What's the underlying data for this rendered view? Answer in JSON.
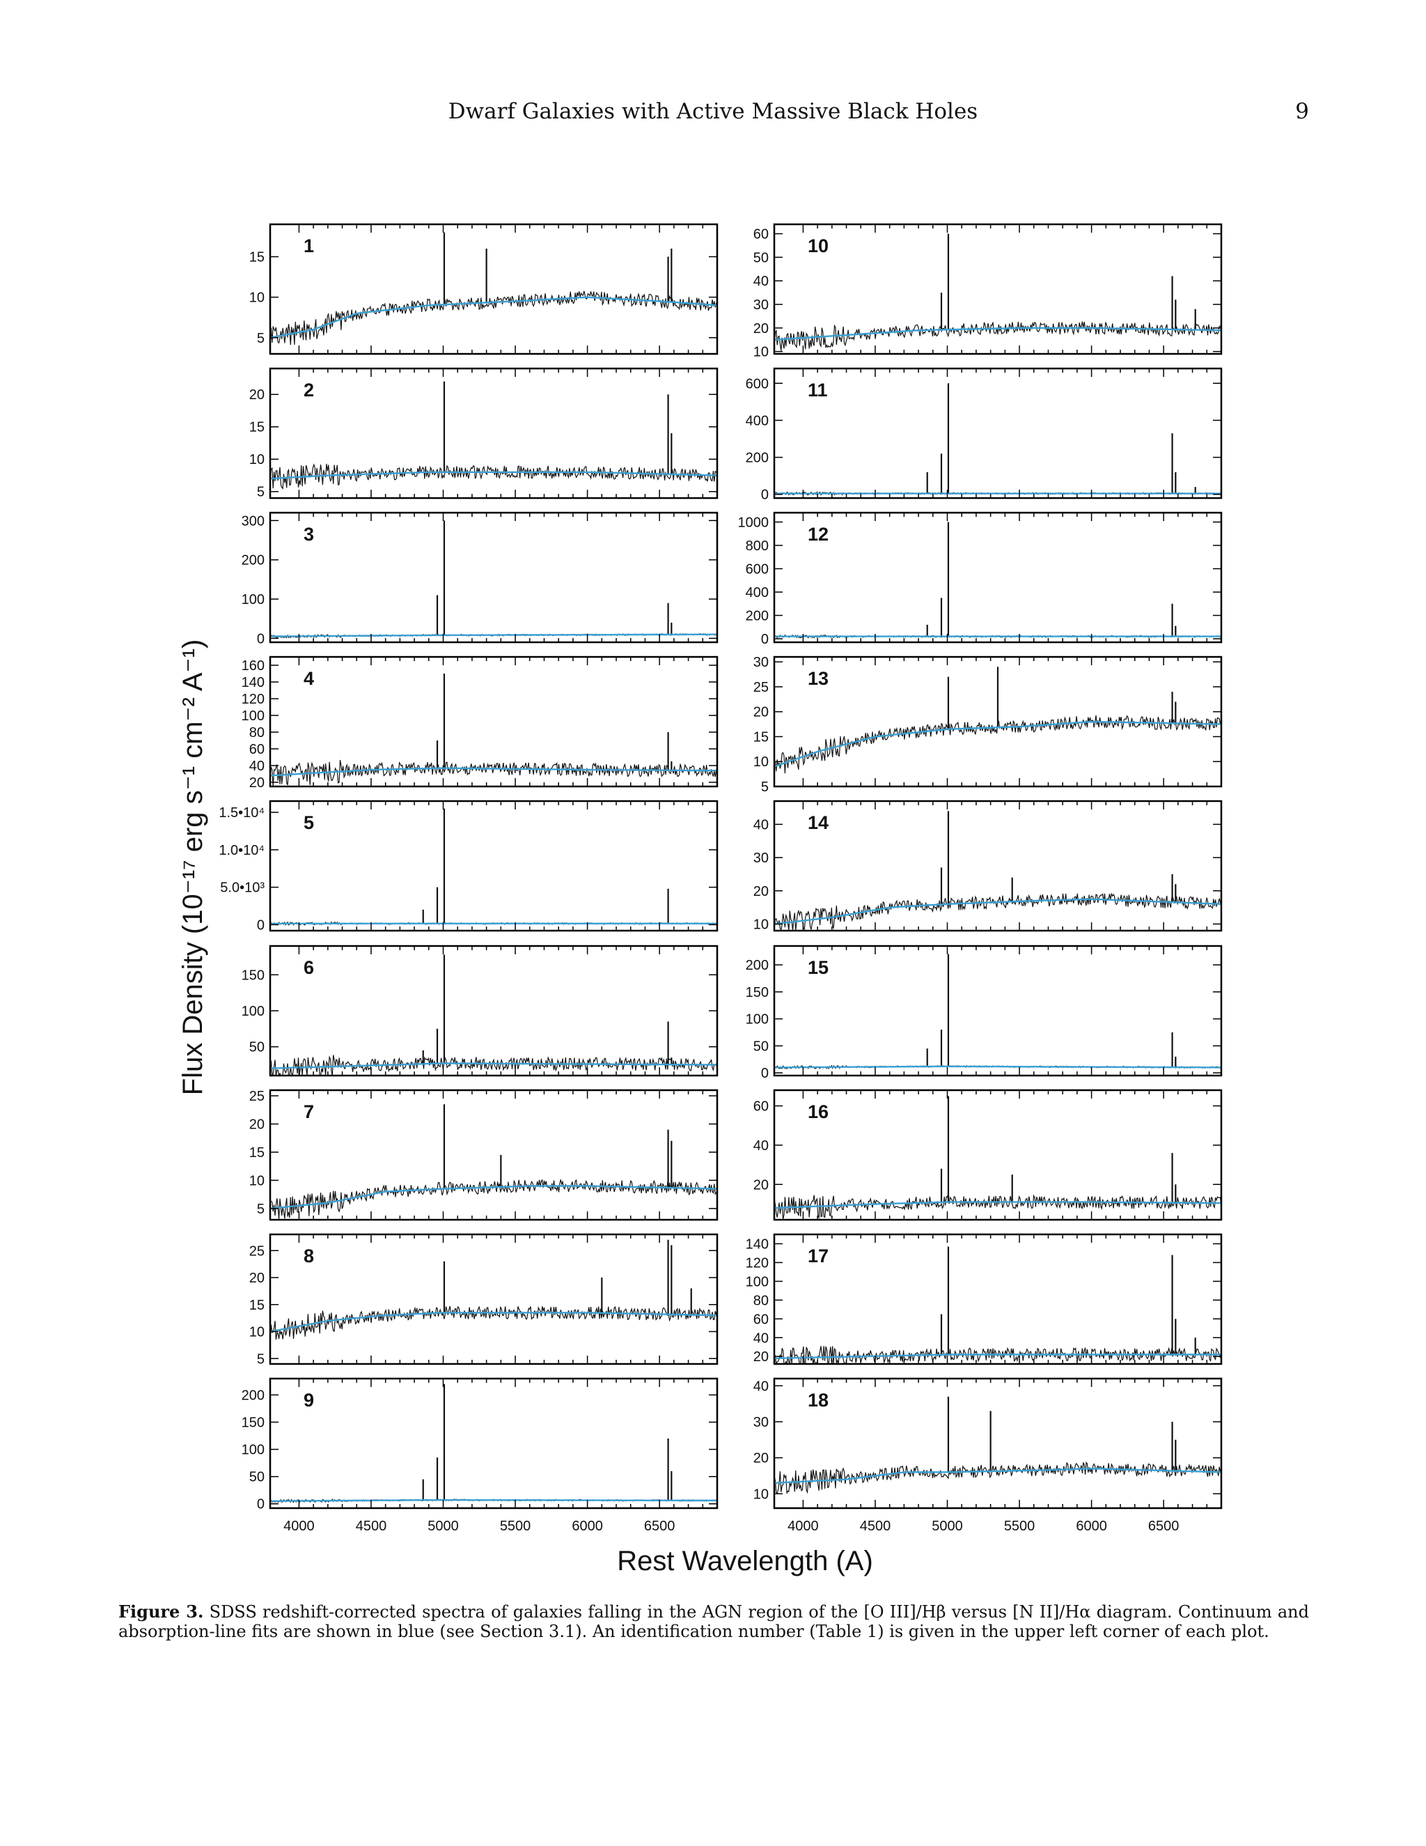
{
  "header": {
    "running_title": "Dwarf Galaxies with Active Massive Black Holes",
    "page_number": "9"
  },
  "figure": {
    "y_axis_label": "Flux Density (10⁻¹⁷ erg s⁻¹ cm⁻² A⁻¹)",
    "x_axis_label": "Rest Wavelength (A)",
    "colors": {
      "spectrum": "#111111",
      "fit": "#3aa0d4",
      "frame": "#000000"
    }
  },
  "caption": {
    "label": "Figure 3.",
    "text": "SDSS redshift-corrected spectra of galaxies falling in the AGN region of the [O III]/Hβ versus [N II]/Hα diagram. Continuum and absorption-line fits are shown in blue (see Section 3.1). An identification number (Table 1) is given in the upper left corner of each plot."
  },
  "chart_data": [
    {
      "type": "line",
      "id": "1",
      "xlim": [
        3800,
        6900
      ],
      "ylim": [
        3,
        19
      ],
      "ytick_labels": [
        "5",
        "10",
        "15"
      ],
      "yticks": [
        5,
        10,
        15
      ],
      "continuum": [
        [
          3800,
          5
        ],
        [
          4100,
          6
        ],
        [
          4400,
          8
        ],
        [
          4900,
          9
        ],
        [
          5500,
          9.5
        ],
        [
          6000,
          10
        ],
        [
          6500,
          9.5
        ],
        [
          6900,
          9
        ]
      ],
      "lines": [
        [
          5007,
          18
        ],
        [
          5300,
          16
        ],
        [
          6560,
          15
        ],
        [
          6583,
          16
        ]
      ]
    },
    {
      "type": "line",
      "id": "2",
      "xlim": [
        3800,
        6900
      ],
      "ylim": [
        4,
        24
      ],
      "ytick_labels": [
        "5",
        "10",
        "15",
        "20"
      ],
      "yticks": [
        5,
        10,
        15,
        20
      ],
      "continuum": [
        [
          3800,
          7
        ],
        [
          4200,
          7.5
        ],
        [
          4900,
          8
        ],
        [
          5500,
          8
        ],
        [
          6000,
          8
        ],
        [
          6900,
          7.5
        ]
      ],
      "lines": [
        [
          5007,
          22
        ],
        [
          6560,
          20
        ],
        [
          6583,
          14
        ]
      ]
    },
    {
      "type": "line",
      "id": "3",
      "xlim": [
        3800,
        6900
      ],
      "ylim": [
        -10,
        320
      ],
      "ytick_labels": [
        "0",
        "100",
        "200",
        "300"
      ],
      "yticks": [
        0,
        100,
        200,
        300
      ],
      "continuum": [
        [
          3800,
          5
        ],
        [
          5000,
          8
        ],
        [
          6900,
          10
        ]
      ],
      "lines": [
        [
          4959,
          110
        ],
        [
          5007,
          300
        ],
        [
          6560,
          90
        ],
        [
          6583,
          40
        ]
      ]
    },
    {
      "type": "line",
      "id": "4",
      "xlim": [
        3800,
        6900
      ],
      "ylim": [
        15,
        170
      ],
      "ytick_labels": [
        "20",
        "40",
        "60",
        "80",
        "100",
        "120",
        "140",
        "160"
      ],
      "yticks": [
        20,
        40,
        60,
        80,
        100,
        120,
        140,
        160
      ],
      "continuum": [
        [
          3800,
          28
        ],
        [
          4500,
          35
        ],
        [
          5000,
          37
        ],
        [
          6000,
          35
        ],
        [
          6900,
          34
        ]
      ],
      "lines": [
        [
          4959,
          70
        ],
        [
          5007,
          150
        ],
        [
          6560,
          80
        ],
        [
          6583,
          45
        ]
      ]
    },
    {
      "type": "line",
      "id": "5",
      "xlim": [
        3800,
        6900
      ],
      "ylim": [
        -800,
        16500
      ],
      "ytick_labels": [
        "0",
        "5.0•10³",
        "1.0•10⁴",
        "1.5•10⁴"
      ],
      "yticks": [
        0,
        5000,
        10000,
        15000
      ],
      "continuum": [
        [
          3800,
          150
        ],
        [
          6900,
          150
        ]
      ],
      "lines": [
        [
          4861,
          2000
        ],
        [
          4959,
          5000
        ],
        [
          5007,
          15500
        ],
        [
          6560,
          4800
        ]
      ]
    },
    {
      "type": "line",
      "id": "6",
      "xlim": [
        3800,
        6900
      ],
      "ylim": [
        10,
        190
      ],
      "ytick_labels": [
        "50",
        "100",
        "150"
      ],
      "yticks": [
        50,
        100,
        150
      ],
      "continuum": [
        [
          3800,
          20
        ],
        [
          5000,
          27
        ],
        [
          6900,
          25
        ]
      ],
      "lines": [
        [
          4861,
          45
        ],
        [
          4959,
          75
        ],
        [
          5007,
          178
        ],
        [
          6560,
          85
        ],
        [
          6583,
          35
        ]
      ]
    },
    {
      "type": "line",
      "id": "7",
      "xlim": [
        3800,
        6900
      ],
      "ylim": [
        3,
        26
      ],
      "ytick_labels": [
        "5",
        "10",
        "15",
        "20",
        "25"
      ],
      "yticks": [
        5,
        10,
        15,
        20,
        25
      ],
      "continuum": [
        [
          3800,
          5
        ],
        [
          4200,
          6
        ],
        [
          4600,
          8
        ],
        [
          5000,
          8.5
        ],
        [
          5600,
          9
        ],
        [
          6000,
          9
        ],
        [
          6900,
          8.5
        ]
      ],
      "lines": [
        [
          5007,
          23.5
        ],
        [
          5400,
          14.5
        ],
        [
          6560,
          19
        ],
        [
          6583,
          17
        ]
      ]
    },
    {
      "type": "line",
      "id": "8",
      "xlim": [
        3800,
        6900
      ],
      "ylim": [
        4,
        28
      ],
      "ytick_labels": [
        "5",
        "10",
        "15",
        "20",
        "25"
      ],
      "yticks": [
        5,
        10,
        15,
        20,
        25
      ],
      "continuum": [
        [
          3800,
          10
        ],
        [
          4200,
          12
        ],
        [
          4600,
          13
        ],
        [
          5000,
          13.5
        ],
        [
          5600,
          13.5
        ],
        [
          6000,
          13.5
        ],
        [
          6900,
          13
        ]
      ],
      "lines": [
        [
          5007,
          23
        ],
        [
          6100,
          20
        ],
        [
          6560,
          27
        ],
        [
          6583,
          26
        ],
        [
          6720,
          18
        ]
      ]
    },
    {
      "type": "line",
      "id": "9",
      "xlim": [
        3800,
        6900
      ],
      "ylim": [
        -8,
        230
      ],
      "ytick_labels": [
        "0",
        "50",
        "100",
        "150",
        "200"
      ],
      "yticks": [
        0,
        50,
        100,
        150,
        200
      ],
      "continuum": [
        [
          3800,
          5
        ],
        [
          5000,
          7
        ],
        [
          6900,
          6
        ]
      ],
      "lines": [
        [
          4861,
          45
        ],
        [
          4959,
          85
        ],
        [
          5007,
          220
        ],
        [
          6560,
          120
        ],
        [
          6583,
          60
        ]
      ]
    },
    {
      "type": "line",
      "id": "10",
      "xlim": [
        3800,
        6900
      ],
      "ylim": [
        9,
        64
      ],
      "ytick_labels": [
        "10",
        "20",
        "30",
        "40",
        "50",
        "60"
      ],
      "yticks": [
        10,
        20,
        30,
        40,
        50,
        60
      ],
      "continuum": [
        [
          3800,
          15
        ],
        [
          4300,
          17
        ],
        [
          4800,
          19
        ],
        [
          5500,
          20
        ],
        [
          6000,
          20
        ],
        [
          6900,
          19
        ]
      ],
      "lines": [
        [
          4959,
          35
        ],
        [
          5007,
          60
        ],
        [
          6560,
          42
        ],
        [
          6583,
          32
        ],
        [
          6720,
          28
        ]
      ]
    },
    {
      "type": "line",
      "id": "11",
      "xlim": [
        3800,
        6900
      ],
      "ylim": [
        -20,
        680
      ],
      "ytick_labels": [
        "0",
        "200",
        "400",
        "600"
      ],
      "yticks": [
        0,
        200,
        400,
        600
      ],
      "continuum": [
        [
          3800,
          5
        ],
        [
          6900,
          5
        ]
      ],
      "lines": [
        [
          4861,
          120
        ],
        [
          4959,
          220
        ],
        [
          5007,
          600
        ],
        [
          6560,
          330
        ],
        [
          6583,
          120
        ],
        [
          6720,
          40
        ]
      ]
    },
    {
      "type": "line",
      "id": "12",
      "xlim": [
        3800,
        6900
      ],
      "ylim": [
        -30,
        1080
      ],
      "ytick_labels": [
        "0",
        "200",
        "400",
        "600",
        "800",
        "1000"
      ],
      "yticks": [
        0,
        200,
        400,
        600,
        800,
        1000
      ],
      "continuum": [
        [
          3800,
          20
        ],
        [
          6900,
          20
        ]
      ],
      "lines": [
        [
          4861,
          120
        ],
        [
          4959,
          350
        ],
        [
          5007,
          1000
        ],
        [
          6560,
          300
        ],
        [
          6583,
          110
        ]
      ]
    },
    {
      "type": "line",
      "id": "13",
      "xlim": [
        3800,
        6900
      ],
      "ylim": [
        5,
        31
      ],
      "ytick_labels": [
        "5",
        "10",
        "15",
        "20",
        "25",
        "30"
      ],
      "yticks": [
        5,
        10,
        15,
        20,
        25,
        30
      ],
      "continuum": [
        [
          3800,
          9
        ],
        [
          4100,
          12
        ],
        [
          4500,
          15
        ],
        [
          5000,
          16.5
        ],
        [
          5500,
          17
        ],
        [
          6000,
          18
        ],
        [
          6900,
          17.5
        ]
      ],
      "lines": [
        [
          5007,
          27
        ],
        [
          5350,
          29
        ],
        [
          6560,
          24
        ],
        [
          6583,
          22
        ]
      ]
    },
    {
      "type": "line",
      "id": "14",
      "xlim": [
        3800,
        6900
      ],
      "ylim": [
        8,
        47
      ],
      "ytick_labels": [
        "10",
        "20",
        "30",
        "40"
      ],
      "yticks": [
        10,
        20,
        30,
        40
      ],
      "continuum": [
        [
          3800,
          10
        ],
        [
          4200,
          12
        ],
        [
          4600,
          15
        ],
        [
          5000,
          16
        ],
        [
          5600,
          17
        ],
        [
          6000,
          17.5
        ],
        [
          6900,
          16
        ]
      ],
      "lines": [
        [
          4959,
          27
        ],
        [
          5007,
          44
        ],
        [
          5450,
          24
        ],
        [
          6560,
          25
        ],
        [
          6583,
          22
        ]
      ]
    },
    {
      "type": "line",
      "id": "15",
      "xlim": [
        3800,
        6900
      ],
      "ylim": [
        -5,
        235
      ],
      "ytick_labels": [
        "0",
        "50",
        "100",
        "150",
        "200"
      ],
      "yticks": [
        0,
        50,
        100,
        150,
        200
      ],
      "continuum": [
        [
          3800,
          10
        ],
        [
          5000,
          12
        ],
        [
          6900,
          10
        ]
      ],
      "lines": [
        [
          4861,
          45
        ],
        [
          4959,
          80
        ],
        [
          5007,
          220
        ],
        [
          6560,
          75
        ],
        [
          6583,
          30
        ]
      ]
    },
    {
      "type": "line",
      "id": "16",
      "xlim": [
        3800,
        6900
      ],
      "ylim": [
        2,
        68
      ],
      "ytick_labels": [
        "20",
        "40",
        "60"
      ],
      "yticks": [
        20,
        40,
        60
      ],
      "continuum": [
        [
          3800,
          8
        ],
        [
          4500,
          10
        ],
        [
          5000,
          11
        ],
        [
          6000,
          11
        ],
        [
          6900,
          10.5
        ]
      ],
      "lines": [
        [
          4959,
          28
        ],
        [
          5007,
          65
        ],
        [
          5450,
          25
        ],
        [
          6560,
          36
        ],
        [
          6583,
          20
        ]
      ]
    },
    {
      "type": "line",
      "id": "17",
      "xlim": [
        3800,
        6900
      ],
      "ylim": [
        12,
        150
      ],
      "ytick_labels": [
        "20",
        "40",
        "60",
        "80",
        "100",
        "120",
        "140"
      ],
      "yticks": [
        20,
        40,
        60,
        80,
        100,
        120,
        140
      ],
      "continuum": [
        [
          3800,
          18
        ],
        [
          5000,
          22
        ],
        [
          6900,
          22
        ]
      ],
      "lines": [
        [
          4959,
          65
        ],
        [
          5007,
          137
        ],
        [
          6560,
          128
        ],
        [
          6583,
          60
        ],
        [
          6720,
          40
        ]
      ]
    },
    {
      "type": "line",
      "id": "18",
      "xlim": [
        3800,
        6900
      ],
      "ylim": [
        6,
        42
      ],
      "ytick_labels": [
        "10",
        "20",
        "30",
        "40"
      ],
      "yticks": [
        10,
        20,
        30,
        40
      ],
      "continuum": [
        [
          3800,
          13
        ],
        [
          4300,
          14
        ],
        [
          4700,
          16
        ],
        [
          5000,
          16
        ],
        [
          5600,
          16.5
        ],
        [
          6000,
          17
        ],
        [
          6900,
          16
        ]
      ],
      "lines": [
        [
          5007,
          37
        ],
        [
          5300,
          33
        ],
        [
          6560,
          30
        ],
        [
          6583,
          25
        ]
      ]
    }
  ],
  "x_ticks": {
    "values": [
      4000,
      4500,
      5000,
      5500,
      6000,
      6500
    ],
    "labels": [
      "4000",
      "4500",
      "5000",
      "5500",
      "6000",
      "6500"
    ]
  }
}
